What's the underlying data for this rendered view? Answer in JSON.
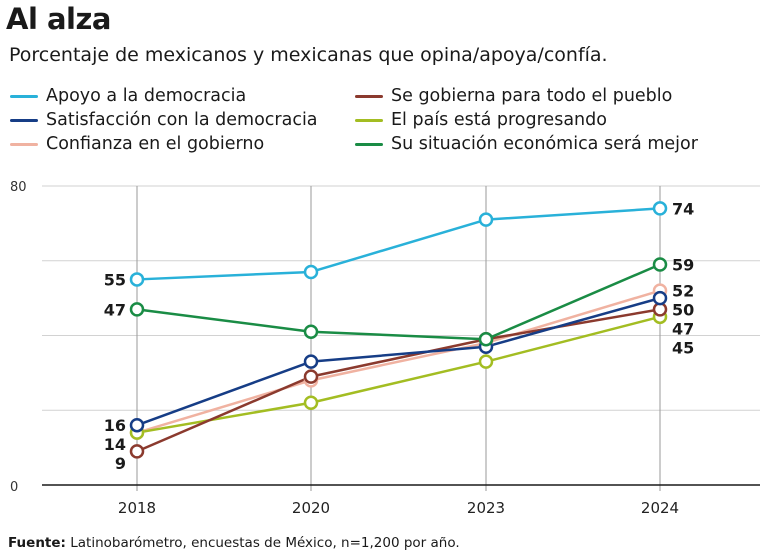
{
  "title": "Al alza",
  "subtitle": "Porcentaje de mexicanos y mexicanas que opina/apoya/confía.",
  "legend": [
    {
      "label": "Apoyo a la democracia",
      "color": "#29b1d9"
    },
    {
      "label": "Se gobierna para todo el pueblo",
      "color": "#8b3a2e"
    },
    {
      "label": "Satisfacción con la democracia",
      "color": "#163d86"
    },
    {
      "label": "El país está progresando",
      "color": "#a3bd22"
    },
    {
      "label": "Confianza en el gobierno",
      "color": "#f0b2a1"
    },
    {
      "label": "Su situación económica será mejor",
      "color": "#1a8c45"
    }
  ],
  "source": {
    "label": "Fuente:",
    "text": "Latinobarómetro, encuestas de México, n=1,200 por año."
  },
  "chart_data": {
    "type": "line",
    "x": [
      "2018",
      "2020",
      "2023",
      "2024"
    ],
    "ylim": [
      0,
      80
    ],
    "yticks": [
      "0",
      "80"
    ],
    "grid": true,
    "series": [
      {
        "name": "Apoyo a la democracia",
        "color": "#29b1d9",
        "values": [
          55,
          57,
          71,
          74
        ]
      },
      {
        "name": "Se gobierna para todo el pueblo",
        "color": "#8b3a2e",
        "values": [
          9,
          29,
          39,
          47
        ]
      },
      {
        "name": "Satisfacción con la democracia",
        "color": "#163d86",
        "values": [
          16,
          33,
          37,
          50
        ]
      },
      {
        "name": "El país está progresando",
        "color": "#a3bd22",
        "values": [
          14,
          22,
          33,
          45
        ]
      },
      {
        "name": "Confianza en el gobierno",
        "color": "#f0b2a1",
        "values": [
          14,
          28,
          38,
          52
        ]
      },
      {
        "name": "Su situación económica será mejor",
        "color": "#1a8c45",
        "values": [
          47,
          41,
          39,
          59
        ]
      }
    ],
    "data_labels": [
      {
        "text": "55",
        "series": 0,
        "point": 0,
        "side": "left"
      },
      {
        "text": "47",
        "series": 5,
        "point": 0,
        "side": "left"
      },
      {
        "text": "16",
        "series": 2,
        "point": 0,
        "side": "left"
      },
      {
        "text": "14",
        "series": 3,
        "point": 0,
        "side": "left"
      },
      {
        "text": "9",
        "series": 1,
        "point": 0,
        "side": "left"
      },
      {
        "text": "74",
        "series": 0,
        "point": 3,
        "side": "right"
      },
      {
        "text": "59",
        "series": 5,
        "point": 3,
        "side": "right"
      },
      {
        "text": "52",
        "series": 4,
        "point": 3,
        "side": "right"
      },
      {
        "text": "50",
        "series": 2,
        "point": 3,
        "side": "right"
      },
      {
        "text": "47",
        "series": 1,
        "point": 3,
        "side": "right"
      },
      {
        "text": "45",
        "series": 3,
        "point": 3,
        "side": "right"
      }
    ]
  }
}
